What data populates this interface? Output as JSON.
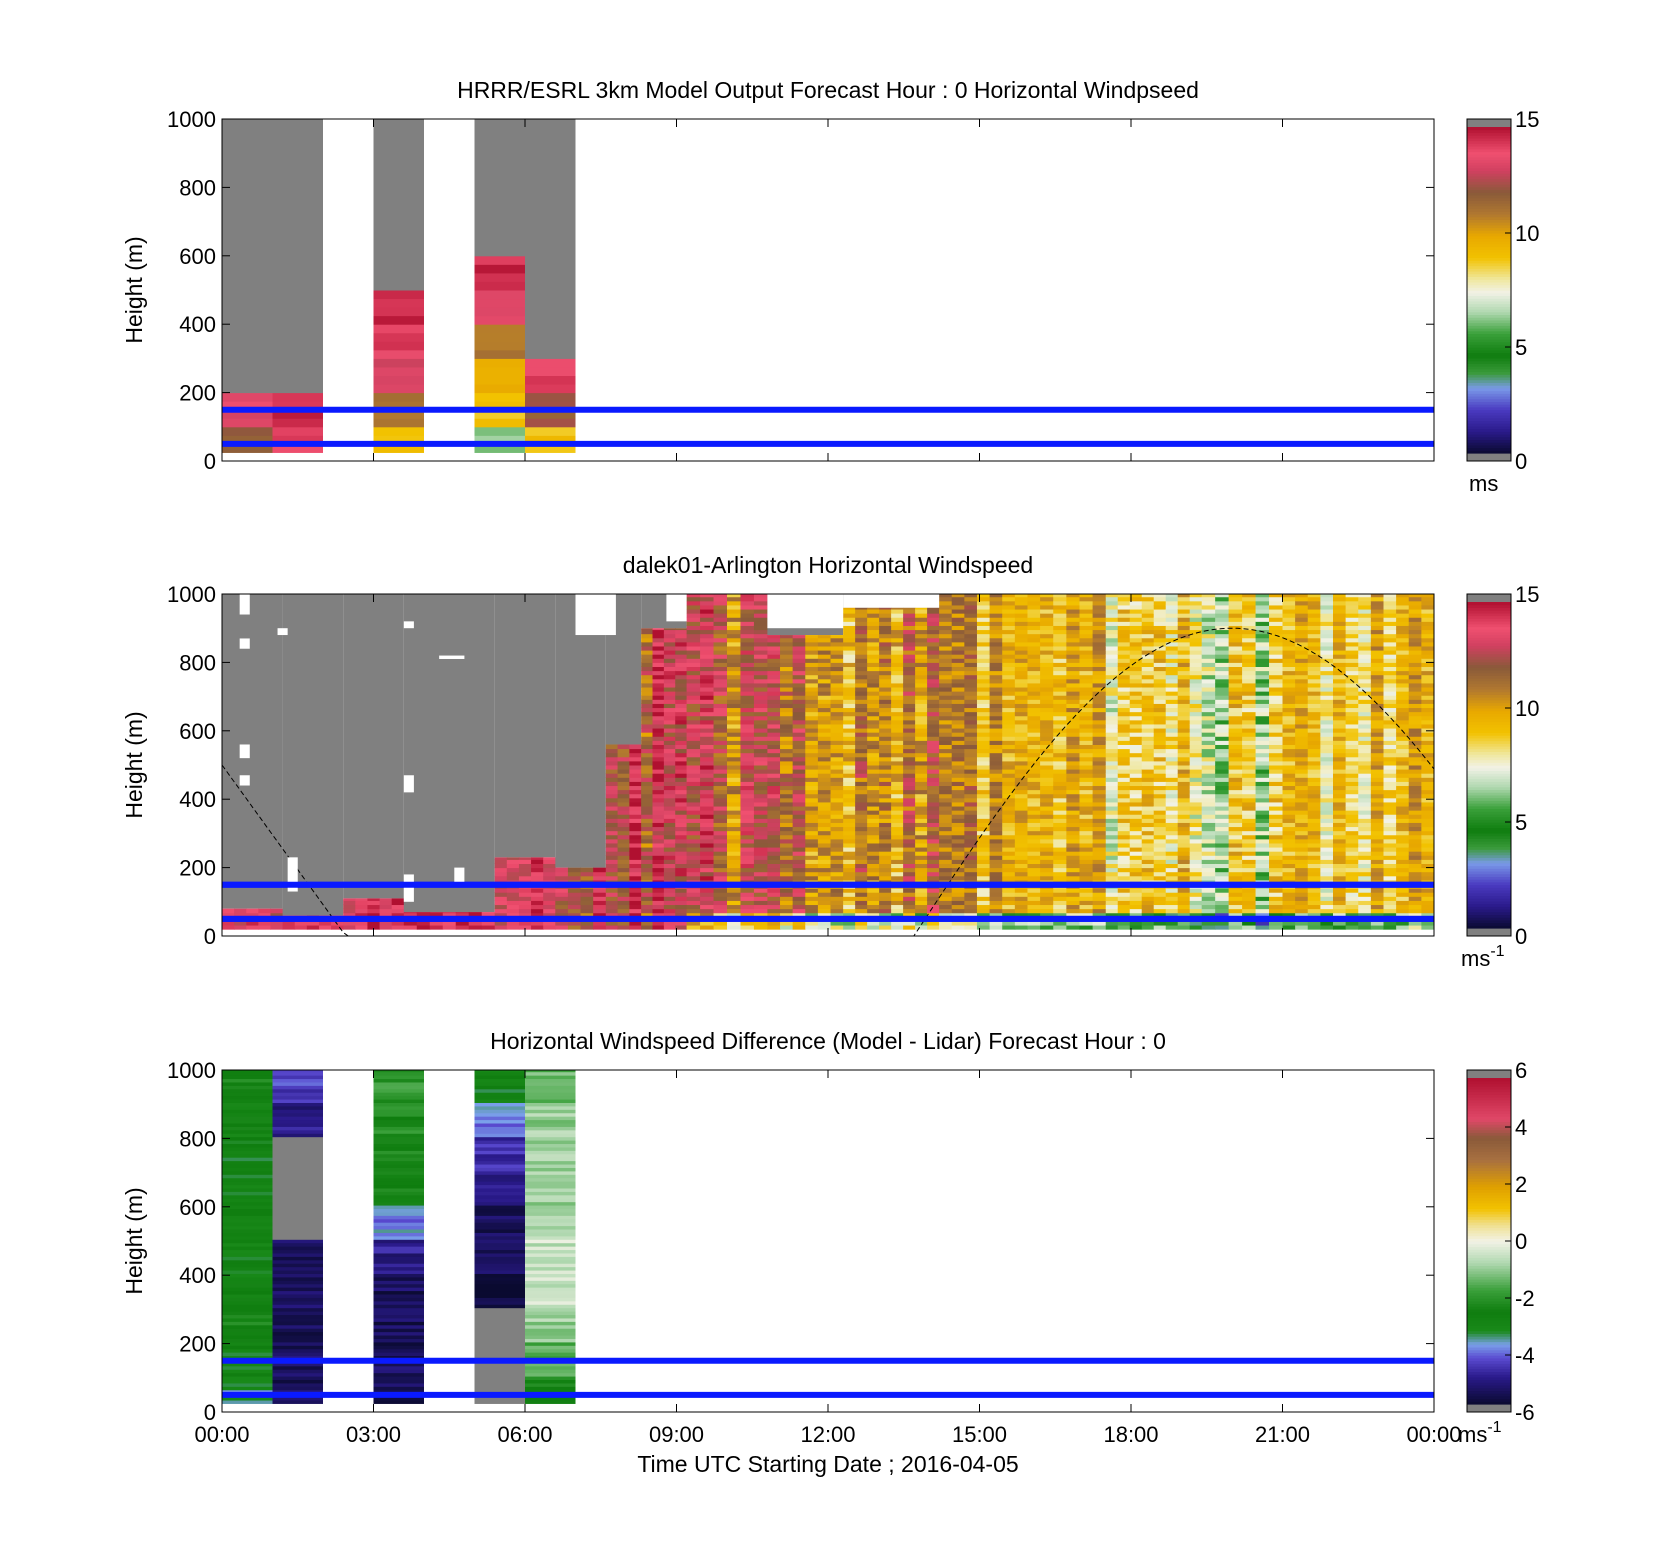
{
  "chart_data": [
    {
      "type": "heatmap",
      "title": "HRRR/ESRL 3km Model Output   Forecast Hour : 0 Horizontal Windpseed",
      "ylabel": "Height (m)",
      "xlabel": "",
      "ylim": [
        0,
        1000
      ],
      "xlim": [
        0,
        24
      ],
      "yticks": [
        "0",
        "200",
        "400",
        "600",
        "800",
        "1000"
      ],
      "xticks": [
        "",
        "",
        "",
        "",
        "",
        "",
        "",
        "",
        ""
      ],
      "colorbar": {
        "min": 0,
        "max": 15,
        "ticks": [
          "0",
          "5",
          "10",
          "15"
        ],
        "unit": "ms",
        "unit_exp": ""
      },
      "blue_lines_height_m": [
        50,
        150
      ],
      "columns": [
        {
          "t0": 0,
          "t1": 1,
          "top": 1000,
          "profile": [
            12,
            13.5,
            0,
            0,
            0,
            0,
            0,
            0,
            0,
            0
          ]
        },
        {
          "t0": 1,
          "t1": 2,
          "top": 1000,
          "profile": [
            14,
            14.5,
            0,
            0,
            0,
            0,
            0,
            0,
            0,
            0
          ]
        },
        {
          "t0": 3,
          "t1": 4,
          "top": 1000,
          "profile": [
            9,
            11,
            13,
            14,
            14.5,
            0,
            0,
            0,
            0,
            0
          ]
        },
        {
          "t0": 5,
          "t1": 6,
          "top": 1000,
          "profile": [
            6,
            9,
            10,
            11,
            13.5,
            14.5,
            0,
            0,
            0,
            0
          ]
        },
        {
          "t0": 6,
          "t1": 7,
          "top": 1000,
          "profile": [
            9,
            12,
            14,
            0,
            0,
            0,
            0,
            0,
            0,
            0
          ]
        }
      ]
    },
    {
      "type": "heatmap",
      "title": "dalek01-Arlington  Horizontal Windspeed",
      "ylabel": "Height (m)",
      "xlabel": "",
      "ylim": [
        0,
        1000
      ],
      "xlim": [
        0,
        24
      ],
      "yticks": [
        "0",
        "200",
        "400",
        "600",
        "800",
        "1000"
      ],
      "xticks": [
        "",
        "",
        "",
        "",
        "",
        "",
        "",
        "",
        ""
      ],
      "colorbar": {
        "min": 0,
        "max": 15,
        "ticks": [
          "0",
          "5",
          "10",
          "15"
        ],
        "unit": "ms",
        "unit_exp": "-1"
      },
      "blue_lines_height_m": [
        50,
        150
      ],
      "columns": [
        {
          "t0": 0,
          "t1": 1.2,
          "top": 80,
          "mean": 13.5,
          "var": 1.0
        },
        {
          "t0": 1.2,
          "t1": 2.4,
          "top": 60,
          "mean": 14,
          "var": 1.0
        },
        {
          "t0": 2.4,
          "t1": 3.6,
          "top": 110,
          "mean": 14,
          "var": 1.0
        },
        {
          "t0": 3.6,
          "t1": 5.4,
          "top": 70,
          "mean": 14,
          "var": 0.8
        },
        {
          "t0": 5.4,
          "t1": 6.6,
          "top": 230,
          "mean": 13.5,
          "var": 1.0
        },
        {
          "t0": 6.6,
          "t1": 7.6,
          "top": 200,
          "mean": 13,
          "var": 1.5
        },
        {
          "t0": 7.6,
          "t1": 8.3,
          "top": 560,
          "mean": 13,
          "var": 1.5
        },
        {
          "t0": 8.3,
          "t1": 9.2,
          "top": 900,
          "mean": 12.5,
          "var": 2.0
        },
        {
          "t0": 9.2,
          "t1": 10.8,
          "top": 1000,
          "mean": 12,
          "var": 2.0
        },
        {
          "t0": 10.8,
          "t1": 12.3,
          "top": 880,
          "mean": 11.5,
          "var": 2.0
        },
        {
          "t0": 12.3,
          "t1": 14.2,
          "top": 960,
          "mean": 11,
          "var": 2.0
        },
        {
          "t0": 14.2,
          "t1": 16.2,
          "top": 1000,
          "mean": 10,
          "var": 1.5
        },
        {
          "t0": 16.2,
          "t1": 17.5,
          "top": 1000,
          "mean": 10,
          "var": 1.5
        },
        {
          "t0": 17.5,
          "t1": 19.4,
          "top": 1000,
          "mean": 8,
          "var": 1.8
        },
        {
          "t0": 19.4,
          "t1": 21.0,
          "top": 1000,
          "mean": 7.5,
          "var": 1.8
        },
        {
          "t0": 21.0,
          "t1": 24.0,
          "top": 1000,
          "mean": 9,
          "var": 1.5
        }
      ]
    },
    {
      "type": "heatmap",
      "title": "Horizontal Windspeed Difference (Model - Lidar) Forecast Hour : 0",
      "ylabel": "Height (m)",
      "xlabel": "Time UTC  Starting Date ; 2016-04-05",
      "ylim": [
        0,
        1000
      ],
      "xlim": [
        0,
        24
      ],
      "yticks": [
        "0",
        "200",
        "400",
        "600",
        "800",
        "1000"
      ],
      "xticks": [
        "00:00",
        "03:00",
        "06:00",
        "09:00",
        "12:00",
        "15:00",
        "18:00",
        "21:00",
        "00:00"
      ],
      "colorbar": {
        "min": -6,
        "max": 6,
        "ticks": [
          "-6",
          "-4",
          "-2",
          "0",
          "2",
          "4",
          "6"
        ],
        "unit": "ms",
        "unit_exp": "-1"
      },
      "blue_lines_height_m": [
        50,
        150
      ],
      "columns": [
        {
          "t0": 0,
          "t1": 1,
          "top": 1000,
          "profile": [
            -3.5,
            -3,
            -2.5,
            -2.8,
            -3,
            -2.8,
            -3,
            -3,
            -2.8,
            -2.5
          ]
        },
        {
          "t0": 1,
          "t1": 2,
          "top": 1000,
          "profile": [
            -5.5,
            -5.5,
            -5.5,
            -5.5,
            -5.5,
            -9,
            -9,
            -9,
            -5,
            -4.5
          ]
        },
        {
          "t0": 3,
          "t1": 4,
          "top": 1000,
          "profile": [
            -5.5,
            -5.5,
            -5.5,
            -5.5,
            -5,
            -4,
            -2.5,
            -2.5,
            -2.2,
            -2
          ]
        },
        {
          "t0": 5,
          "t1": 6,
          "top": 1000,
          "profile": [
            -9,
            -9,
            -9,
            -5.8,
            -5.5,
            -5.5,
            -5,
            -4.8,
            -4,
            -3
          ]
        },
        {
          "t0": 6,
          "t1": 7,
          "top": 1000,
          "profile": [
            -2.5,
            -1.5,
            -1,
            -0.5,
            -0.5,
            -0.8,
            -1,
            -1,
            -1,
            -1.5
          ]
        }
      ]
    }
  ]
}
